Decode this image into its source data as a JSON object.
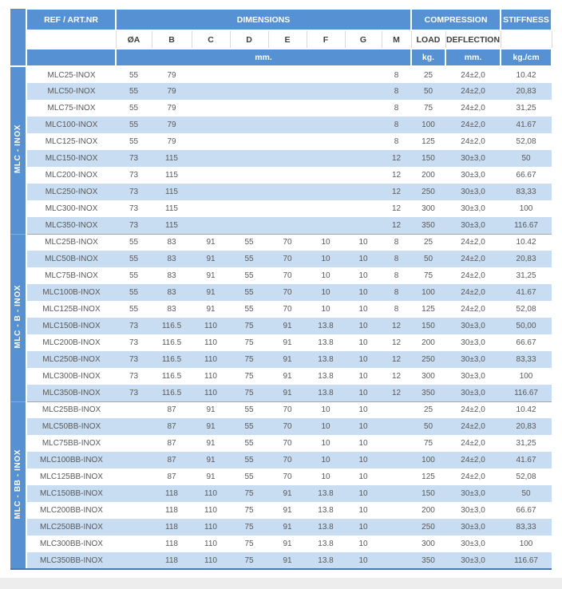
{
  "colors": {
    "header_blue": "#5691d3",
    "band_blue": "#c8ddf2",
    "header_text": "#ffffff",
    "subheader_text": "#404040",
    "body_text": "#595959",
    "group_divider": "#a6a6a6",
    "table_bottom_border": "#4a76b8",
    "footer_band": "#ededed"
  },
  "header": {
    "ref": "REF / ART.NR",
    "dimensions": "DIMENSIONS",
    "compression": "COMPRESSION",
    "stiffness": "STIFFNESS",
    "dim_cols": [
      "ØA",
      "B",
      "C",
      "D",
      "E",
      "F",
      "G",
      "M"
    ],
    "load": "LOAD",
    "deflection": "DEFLECTION",
    "units_dimensions": "mm.",
    "units_load": "kg.",
    "units_deflection": "mm.",
    "units_stiffness": "kg./cm"
  },
  "chart_data": {
    "type": "table",
    "title": "",
    "columns": [
      "REF / ART.NR",
      "ØA",
      "B",
      "C",
      "D",
      "E",
      "F",
      "G",
      "M",
      "LOAD (kg.)",
      "DEFLECTION (mm.)",
      "STIFFNESS (kg./cm)"
    ],
    "groups": [
      {
        "label": "MLC - INOX",
        "rows": [
          [
            "MLC25-INOX",
            "55",
            "79",
            "",
            "",
            "",
            "",
            "",
            "8",
            "25",
            "24±2,0",
            "10.42"
          ],
          [
            "MLC50-INOX",
            "55",
            "79",
            "",
            "",
            "",
            "",
            "",
            "8",
            "50",
            "24±2,0",
            "20,83"
          ],
          [
            "MLC75-INOX",
            "55",
            "79",
            "",
            "",
            "",
            "",
            "",
            "8",
            "75",
            "24±2,0",
            "31,25"
          ],
          [
            "MLC100-INOX",
            "55",
            "79",
            "",
            "",
            "",
            "",
            "",
            "8",
            "100",
            "24±2,0",
            "41.67"
          ],
          [
            "MLC125-INOX",
            "55",
            "79",
            "",
            "",
            "",
            "",
            "",
            "8",
            "125",
            "24±2,0",
            "52,08"
          ],
          [
            "MLC150-INOX",
            "73",
            "115",
            "",
            "",
            "",
            "",
            "",
            "12",
            "150",
            "30±3,0",
            "50"
          ],
          [
            "MLC200-INOX",
            "73",
            "115",
            "",
            "",
            "",
            "",
            "",
            "12",
            "200",
            "30±3,0",
            "66.67"
          ],
          [
            "MLC250-INOX",
            "73",
            "115",
            "",
            "",
            "",
            "",
            "",
            "12",
            "250",
            "30±3,0",
            "83,33"
          ],
          [
            "MLC300-INOX",
            "73",
            "115",
            "",
            "",
            "",
            "",
            "",
            "12",
            "300",
            "30±3,0",
            "100"
          ],
          [
            "MLC350-INOX",
            "73",
            "115",
            "",
            "",
            "",
            "",
            "",
            "12",
            "350",
            "30±3,0",
            "116.67"
          ]
        ]
      },
      {
        "label": "MLC - B - INOX",
        "rows": [
          [
            "MLC25B-INOX",
            "55",
            "83",
            "91",
            "55",
            "70",
            "10",
            "10",
            "8",
            "25",
            "24±2,0",
            "10.42"
          ],
          [
            "MLC50B-INOX",
            "55",
            "83",
            "91",
            "55",
            "70",
            "10",
            "10",
            "8",
            "50",
            "24±2,0",
            "20,83"
          ],
          [
            "MLC75B-INOX",
            "55",
            "83",
            "91",
            "55",
            "70",
            "10",
            "10",
            "8",
            "75",
            "24±2,0",
            "31,25"
          ],
          [
            "MLC100B-INOX",
            "55",
            "83",
            "91",
            "55",
            "70",
            "10",
            "10",
            "8",
            "100",
            "24±2,0",
            "41.67"
          ],
          [
            "MLC125B-INOX",
            "55",
            "83",
            "91",
            "55",
            "70",
            "10",
            "10",
            "8",
            "125",
            "24±2,0",
            "52,08"
          ],
          [
            "MLC150B-INOX",
            "73",
            "116.5",
            "110",
            "75",
            "91",
            "13.8",
            "10",
            "12",
            "150",
            "30±3,0",
            "50,00"
          ],
          [
            "MLC200B-INOX",
            "73",
            "116.5",
            "110",
            "75",
            "91",
            "13.8",
            "10",
            "12",
            "200",
            "30±3,0",
            "66.67"
          ],
          [
            "MLC250B-INOX",
            "73",
            "116.5",
            "110",
            "75",
            "91",
            "13.8",
            "10",
            "12",
            "250",
            "30±3,0",
            "83,33"
          ],
          [
            "MLC300B-INOX",
            "73",
            "116.5",
            "110",
            "75",
            "91",
            "13.8",
            "10",
            "12",
            "300",
            "30±3,0",
            "100"
          ],
          [
            "MLC350B-INOX",
            "73",
            "116.5",
            "110",
            "75",
            "91",
            "13.8",
            "10",
            "12",
            "350",
            "30±3,0",
            "116.67"
          ]
        ]
      },
      {
        "label": "MLC - BB - INOX",
        "rows": [
          [
            "MLC25BB-INOX",
            "",
            "87",
            "91",
            "55",
            "70",
            "10",
            "10",
            "",
            "25",
            "24±2,0",
            "10.42"
          ],
          [
            "MLC50BB-INOX",
            "",
            "87",
            "91",
            "55",
            "70",
            "10",
            "10",
            "",
            "50",
            "24±2,0",
            "20,83"
          ],
          [
            "MLC75BB-INOX",
            "",
            "87",
            "91",
            "55",
            "70",
            "10",
            "10",
            "",
            "75",
            "24±2,0",
            "31,25"
          ],
          [
            "MLC100BB-INOX",
            "",
            "87",
            "91",
            "55",
            "70",
            "10",
            "10",
            "",
            "100",
            "24±2,0",
            "41.67"
          ],
          [
            "MLC125BB-INOX",
            "",
            "87",
            "91",
            "55",
            "70",
            "10",
            "10",
            "",
            "125",
            "24±2,0",
            "52,08"
          ],
          [
            "MLC150BB-INOX",
            "",
            "118",
            "110",
            "75",
            "91",
            "13.8",
            "10",
            "",
            "150",
            "30±3,0",
            "50"
          ],
          [
            "MLC200BB-INOX",
            "",
            "118",
            "110",
            "75",
            "91",
            "13.8",
            "10",
            "",
            "200",
            "30±3,0",
            "66.67"
          ],
          [
            "MLC250BB-INOX",
            "",
            "118",
            "110",
            "75",
            "91",
            "13.8",
            "10",
            "",
            "250",
            "30±3,0",
            "83,33"
          ],
          [
            "MLC300BB-INOX",
            "",
            "118",
            "110",
            "75",
            "91",
            "13.8",
            "10",
            "",
            "300",
            "30±3,0",
            "100"
          ],
          [
            "MLC350BB-INOX",
            "",
            "118",
            "110",
            "75",
            "91",
            "13.8",
            "10",
            "",
            "350",
            "30±3,0",
            "116.67"
          ]
        ]
      }
    ]
  }
}
